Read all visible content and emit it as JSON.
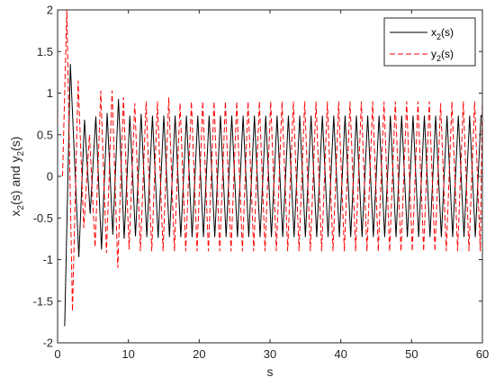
{
  "chart_data": {
    "type": "line",
    "title": "",
    "xlabel": "s",
    "ylabel": "x_2(s) and y_2(s)",
    "xlim": [
      0,
      60
    ],
    "ylim": [
      -2,
      2
    ],
    "xticks": [
      0,
      10,
      20,
      30,
      40,
      50,
      60
    ],
    "yticks": [
      -2,
      -1.5,
      -1,
      -0.5,
      0,
      0.5,
      1,
      1.5,
      2
    ],
    "xtick_labels": [
      "0",
      "10",
      "20",
      "30",
      "40",
      "50",
      "60"
    ],
    "ytick_labels": [
      "-2",
      "-1.5",
      "-1",
      "-0.5",
      "0",
      "0.5",
      "1",
      "1.5",
      "2"
    ],
    "grid": false,
    "legend_position": "top-right",
    "series": [
      {
        "name": "x_2(s)",
        "color": "#000000",
        "dash": "solid",
        "x": [
          1.0,
          1.8,
          3.0,
          3.8,
          4.6,
          5.4,
          6.2,
          7.0,
          7.8,
          8.6,
          9.4,
          10.2,
          11.0,
          11.8,
          12.6,
          13.4,
          14.2,
          15.0,
          15.8,
          16.6,
          17.4,
          18.2,
          19.0,
          19.8,
          20.6,
          21.4,
          22.2,
          23.0,
          23.8,
          24.6,
          25.4,
          26.2,
          27.0,
          27.8,
          28.6,
          29.4,
          30.2,
          31.0,
          31.8,
          32.6,
          33.4,
          34.2,
          35.0,
          35.8,
          36.6,
          37.4,
          38.2,
          39.0,
          39.8,
          40.6,
          41.4,
          42.2,
          43.0,
          43.8,
          44.6,
          45.4,
          46.2,
          47.0,
          47.8,
          48.6,
          49.4,
          50.2,
          51.0,
          51.8,
          52.6,
          53.4,
          54.2,
          55.0,
          55.8,
          56.6,
          57.4,
          58.2,
          59.0,
          59.8,
          60.0
        ],
        "y": [
          -1.8,
          1.35,
          -0.97,
          0.68,
          -0.45,
          0.72,
          -0.88,
          0.76,
          -0.7,
          0.93,
          -0.75,
          0.73,
          -0.72,
          0.75,
          -0.73,
          0.73,
          -0.74,
          0.73,
          -0.73,
          0.73,
          -0.73,
          0.73,
          -0.73,
          0.73,
          -0.73,
          0.73,
          -0.73,
          0.73,
          -0.73,
          0.73,
          -0.73,
          0.73,
          -0.73,
          0.73,
          -0.73,
          0.73,
          -0.73,
          0.73,
          -0.73,
          0.73,
          -0.73,
          0.73,
          -0.73,
          0.73,
          -0.73,
          0.73,
          -0.73,
          0.73,
          -0.73,
          0.73,
          -0.73,
          0.73,
          -0.73,
          0.73,
          -0.73,
          0.73,
          -0.73,
          0.73,
          -0.73,
          0.73,
          -0.73,
          0.73,
          -0.73,
          0.73,
          -0.73,
          0.73,
          -0.73,
          0.73,
          -0.73,
          0.73,
          -0.73,
          0.73,
          -0.73,
          0.73,
          0.72
        ]
      },
      {
        "name": "y_2(s)",
        "color": "#ff0000",
        "dash": "dashed",
        "x": [
          0.7,
          1.3,
          2.1,
          2.9,
          3.7,
          4.5,
          5.3,
          6.1,
          6.9,
          7.7,
          8.5,
          9.3,
          10.1,
          10.9,
          11.7,
          12.5,
          13.3,
          14.1,
          14.9,
          15.7,
          16.5,
          17.3,
          18.1,
          18.9,
          19.7,
          20.5,
          21.3,
          22.1,
          22.9,
          23.7,
          24.5,
          25.3,
          26.1,
          26.9,
          27.7,
          28.5,
          29.3,
          30.1,
          30.9,
          31.7,
          32.5,
          33.3,
          34.1,
          34.9,
          35.7,
          36.5,
          37.3,
          38.1,
          38.9,
          39.7,
          40.5,
          41.3,
          42.1,
          42.9,
          43.7,
          44.5,
          45.3,
          46.1,
          46.9,
          47.7,
          48.5,
          49.3,
          50.1,
          50.9,
          51.7,
          52.5,
          53.3,
          54.1,
          54.9,
          55.7,
          56.5,
          57.3,
          58.1,
          58.9,
          59.7,
          60.0
        ],
        "y": [
          0.0,
          2.0,
          -1.62,
          1.15,
          -0.62,
          0.5,
          -0.85,
          1.03,
          -0.92,
          1.03,
          -1.1,
          0.95,
          -0.88,
          0.88,
          -0.9,
          0.9,
          -0.9,
          0.9,
          -0.9,
          0.95,
          -0.9,
          0.88,
          -0.9,
          0.9,
          -0.9,
          0.9,
          -0.9,
          0.9,
          -0.9,
          0.9,
          -0.9,
          0.9,
          -0.9,
          0.9,
          -0.9,
          0.9,
          -0.9,
          0.9,
          -0.9,
          0.9,
          -0.9,
          0.9,
          -0.9,
          0.9,
          -0.9,
          0.9,
          -0.9,
          0.9,
          -0.9,
          0.9,
          -0.9,
          0.9,
          -0.9,
          0.9,
          -0.9,
          0.9,
          -0.9,
          0.9,
          -0.9,
          0.9,
          -0.9,
          0.9,
          -0.9,
          0.9,
          -0.9,
          0.9,
          -0.9,
          0.88,
          -0.9,
          0.9,
          -0.9,
          0.9,
          -0.9,
          0.9,
          -0.9,
          0.93
        ]
      }
    ]
  }
}
